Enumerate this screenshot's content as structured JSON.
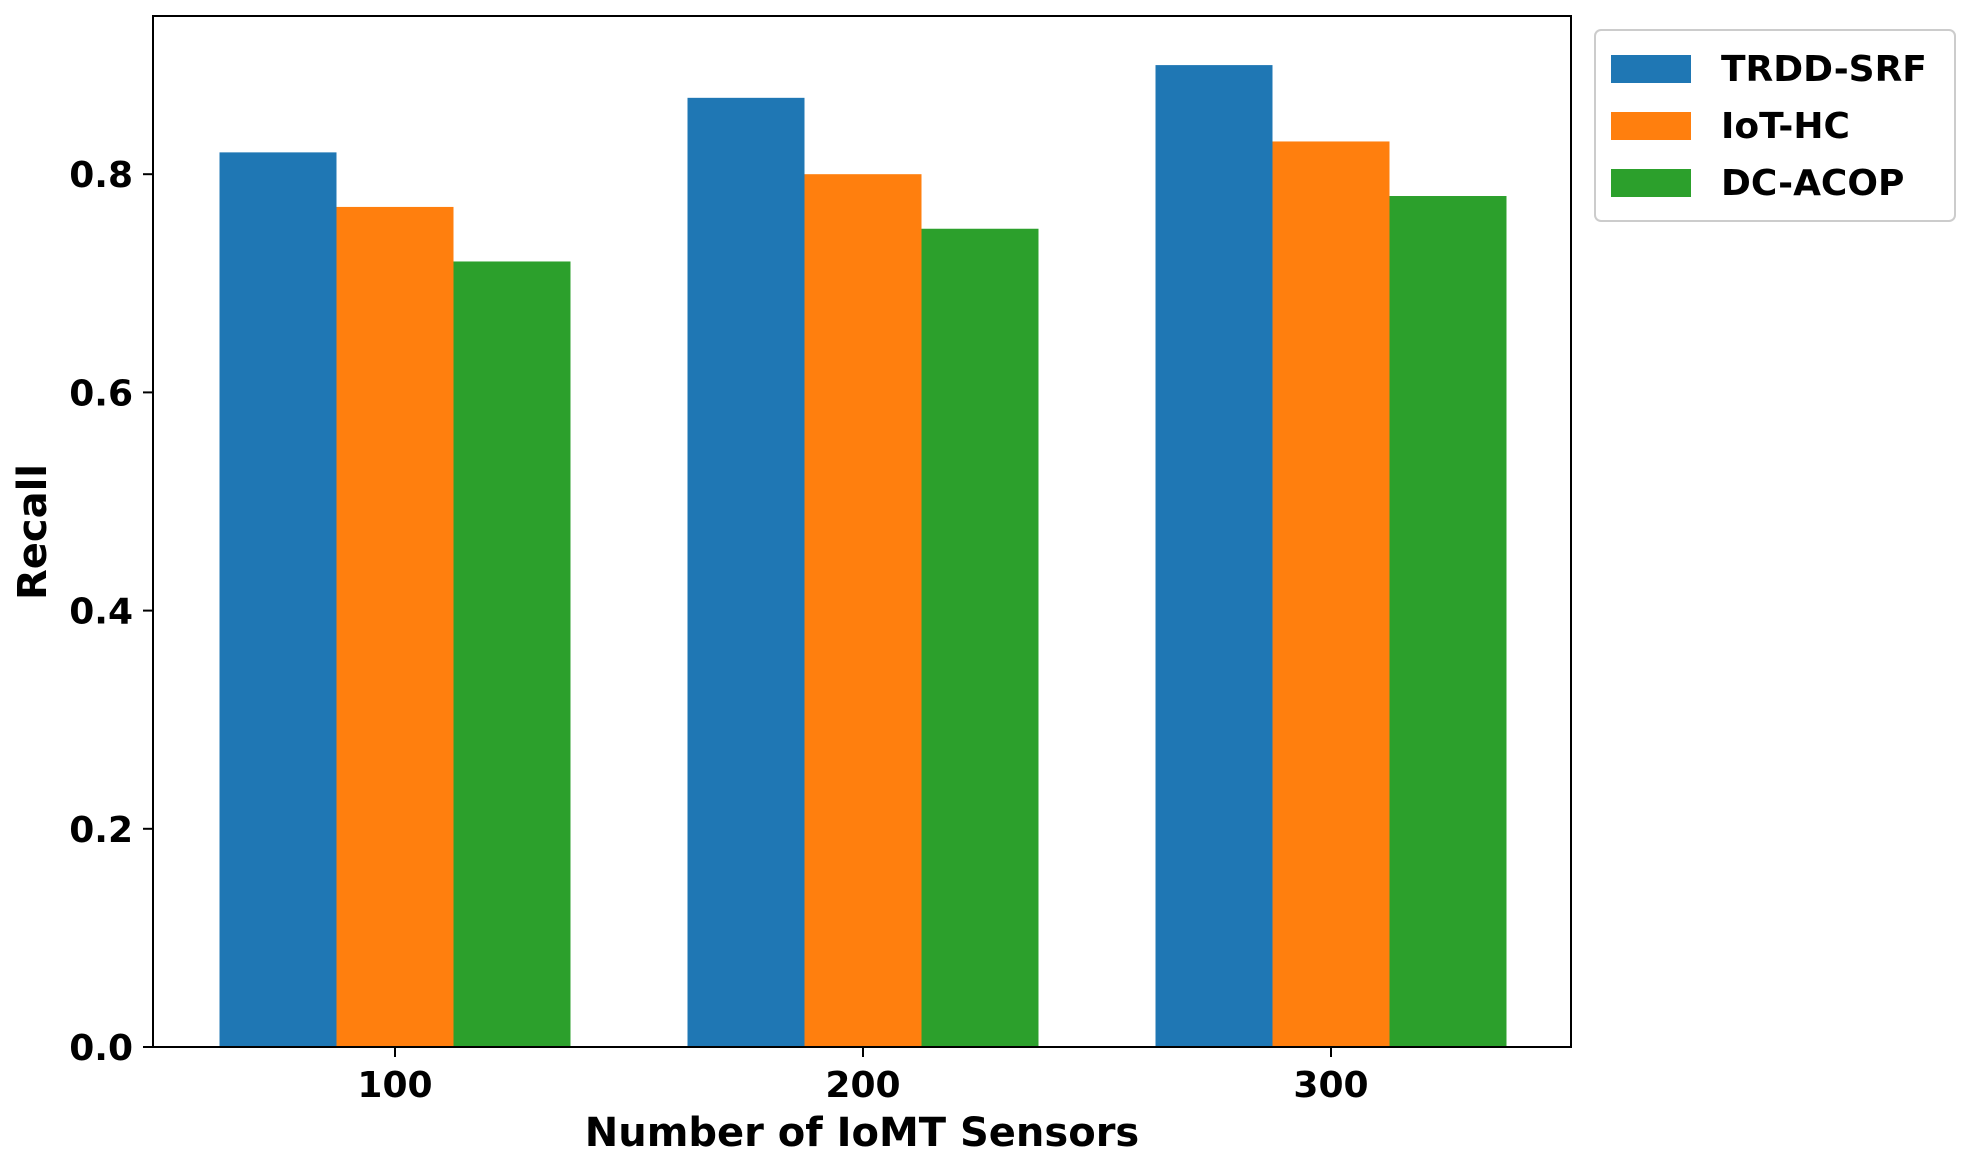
{
  "chart_data": {
    "type": "bar",
    "title": "",
    "xlabel": "Number of IoMT Sensors",
    "ylabel": "Recall",
    "categories": [
      "100",
      "200",
      "300"
    ],
    "series": [
      {
        "name": "TRDD-SRF",
        "color": "#1f77b4",
        "values": [
          0.82,
          0.87,
          0.9
        ]
      },
      {
        "name": "IoT-HC",
        "color": "#ff7f0e",
        "values": [
          0.77,
          0.8,
          0.83
        ]
      },
      {
        "name": "DC-ACOP",
        "color": "#2ca02c",
        "values": [
          0.72,
          0.75,
          0.78
        ]
      }
    ],
    "ylim": [
      0,
      0.945
    ],
    "yticks": [
      0.0,
      0.2,
      0.4,
      0.6,
      0.8
    ],
    "ytick_labels": [
      "0.0",
      "0.2",
      "0.4",
      "0.6",
      "0.8"
    ],
    "grid": false,
    "legend_position": "outside-top-right"
  }
}
